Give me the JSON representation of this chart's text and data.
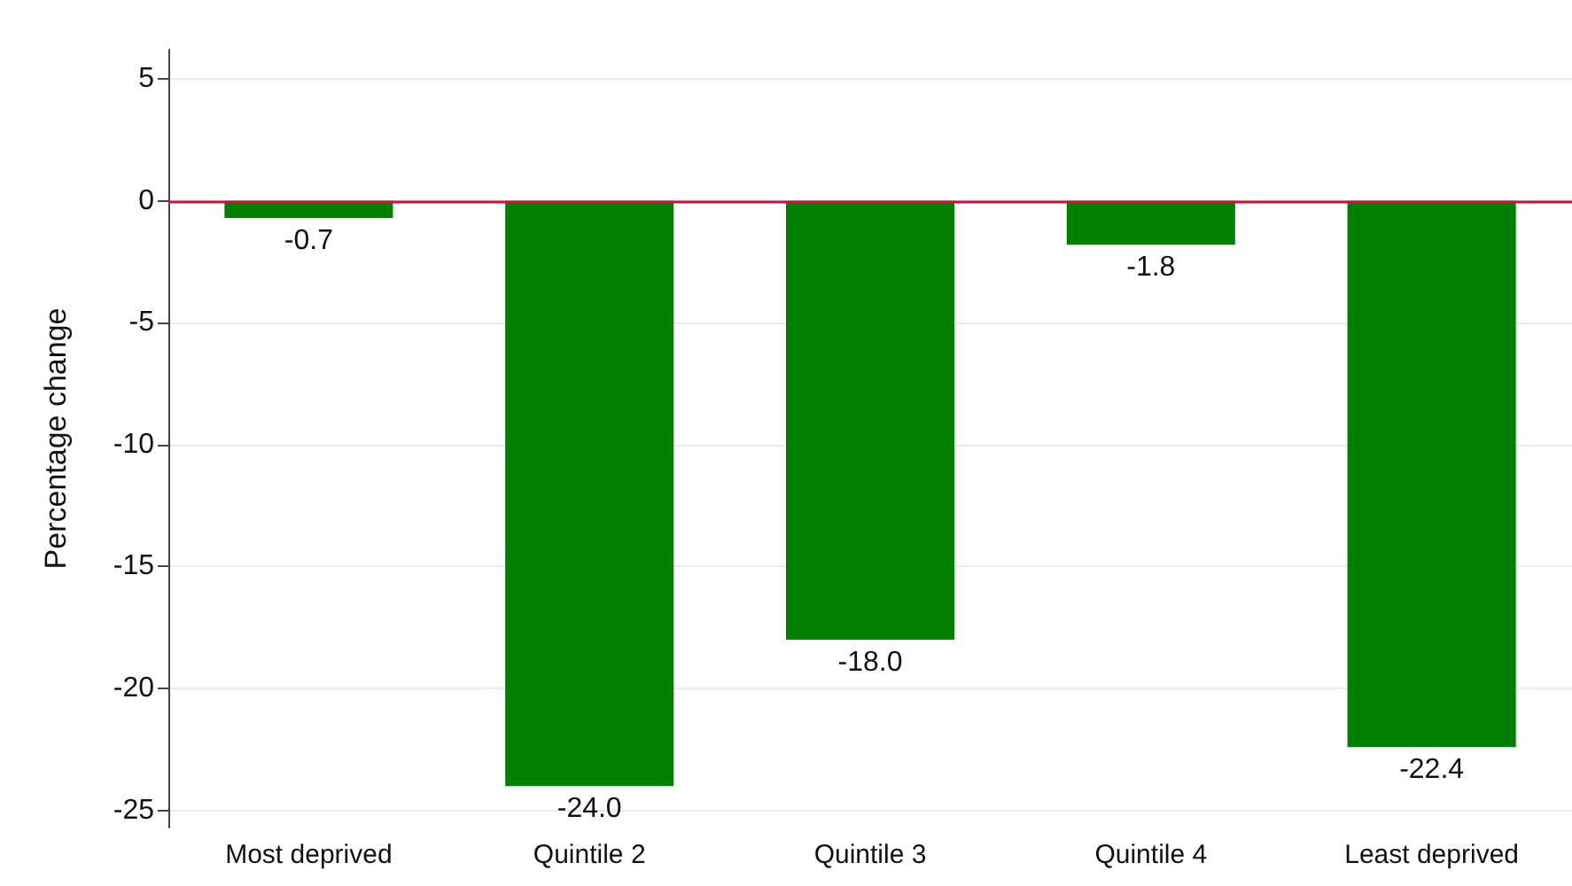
{
  "chart_data": {
    "type": "bar",
    "ylabel": "Percentage change",
    "categories": [
      "Most deprived",
      "Quintile 2",
      "Quintile 3",
      "Quintile 4",
      "Least deprived"
    ],
    "values": [
      -0.7,
      -24.0,
      -18.0,
      -1.8,
      -22.4
    ],
    "color": "#008000",
    "ylim": [
      -25.7,
      6.2
    ],
    "yticks": [
      -25,
      -20,
      -15,
      -10,
      -5,
      0,
      5
    ],
    "grid": "y",
    "value_labels": [
      "-0.7",
      "-24.0",
      "-18.0",
      "-1.8",
      "-22.4"
    ],
    "ref_lines": [
      {
        "axis": "y",
        "value": 0,
        "color": "#d0103a"
      }
    ]
  }
}
